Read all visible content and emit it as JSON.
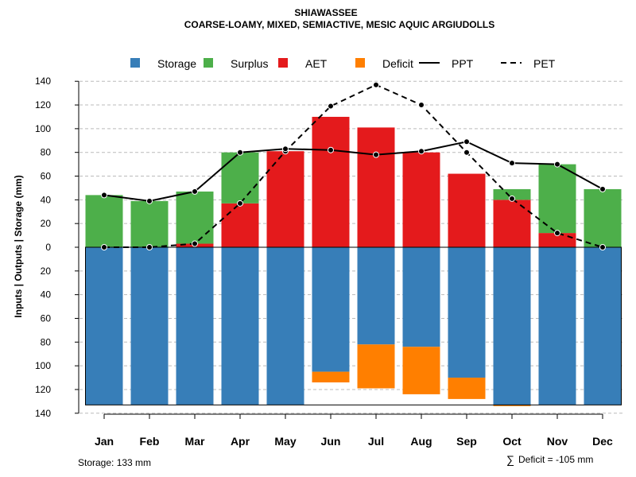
{
  "chart_data": {
    "type": "bar",
    "title": "SHIAWASSEE",
    "subtitle": "COARSE-LOAMY, MIXED, SEMIACTIVE, MESIC AQUIC ARGIUDOLLS",
    "ylabel": "Inputs | Outputs | Storage    (mm)",
    "categories": [
      "Jan",
      "Feb",
      "Mar",
      "Apr",
      "May",
      "Jun",
      "Jul",
      "Aug",
      "Sep",
      "Oct",
      "Nov",
      "Dec"
    ],
    "ylim": [
      -140,
      140
    ],
    "yticks": [
      140,
      120,
      100,
      80,
      60,
      40,
      20,
      0,
      -20,
      -40,
      -60,
      -80,
      -100,
      -120,
      -140
    ],
    "ytick_labels": [
      "140",
      "120",
      "100",
      "80",
      "60",
      "40",
      "20",
      "0",
      "20",
      "40",
      "60",
      "80",
      "100",
      "120",
      "140"
    ],
    "storage_capacity": 133,
    "legend": {
      "placement": "top",
      "entries": [
        {
          "name": "Storage",
          "kind": "box",
          "color": "#377EB8"
        },
        {
          "name": "Surplus",
          "kind": "box",
          "color": "#4DAF4A"
        },
        {
          "name": "AET",
          "kind": "box",
          "color": "#E41A1C"
        },
        {
          "name": "Deficit",
          "kind": "box",
          "color": "#FF7F00"
        },
        {
          "name": "PPT",
          "kind": "solid-line",
          "color": "#000000"
        },
        {
          "name": "PET",
          "kind": "dashed-line",
          "color": "#000000"
        }
      ]
    },
    "series": [
      {
        "name": "AET",
        "color": "#E41A1C",
        "values": [
          0,
          0,
          3,
          37,
          81,
          110,
          101,
          80,
          62,
          40,
          12,
          0
        ]
      },
      {
        "name": "Surplus",
        "color": "#4DAF4A",
        "values": [
          44,
          39,
          44,
          43,
          0,
          0,
          0,
          0,
          0,
          9,
          58,
          49
        ]
      },
      {
        "name": "Storage",
        "color": "#377EB8",
        "values": [
          133,
          133,
          133,
          133,
          133,
          105,
          82,
          84,
          110,
          133,
          133,
          133
        ]
      },
      {
        "name": "Deficit",
        "color": "#FF7F00",
        "values": [
          0,
          0,
          0,
          0,
          0,
          9,
          37,
          40,
          18,
          1,
          0,
          0
        ]
      },
      {
        "name": "PPT",
        "color": "#000000",
        "style": "solid",
        "values": [
          44,
          39,
          47,
          80,
          83,
          82,
          78,
          81,
          89,
          71,
          70,
          49
        ]
      },
      {
        "name": "PET",
        "color": "#000000",
        "style": "dashed",
        "values": [
          0,
          0,
          3,
          37,
          81,
          119,
          137,
          120,
          80,
          41,
          12,
          0
        ]
      }
    ],
    "colors": {
      "grid": "#bbbbbb",
      "frame": "#000000"
    }
  },
  "footer": {
    "storage_text": "Storage: 133 mm",
    "deficit_symbol": "∑",
    "deficit_text": "Deficit = -105 mm"
  }
}
